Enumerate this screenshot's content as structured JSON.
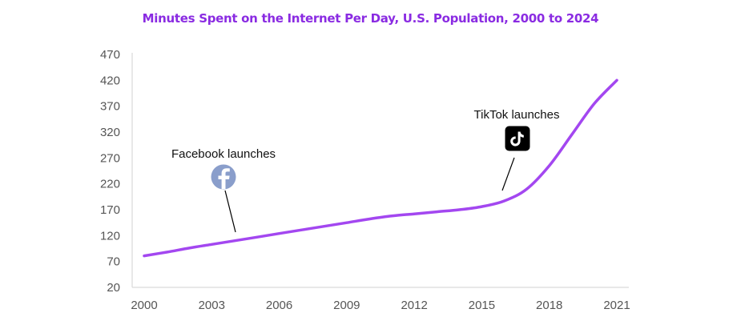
{
  "chart_data": {
    "type": "line",
    "title": "Minutes Spent on the Internet Per Day, U.S. Population, 2000 to 2024",
    "xlabel": "",
    "ylabel": "",
    "x_ticks": [
      "2000",
      "2003",
      "2006",
      "2009",
      "2012",
      "2015",
      "2018",
      "2021"
    ],
    "y_ticks": [
      470,
      420,
      370,
      320,
      270,
      220,
      170,
      120,
      70,
      20
    ],
    "xlim": [
      2000,
      2021
    ],
    "ylim": [
      20,
      470
    ],
    "grid": false,
    "line_color": "#a347f0",
    "series": [
      {
        "x": [
          2000,
          2001,
          2002,
          2003,
          2004,
          2005,
          2006,
          2007,
          2008,
          2009,
          2010,
          2011,
          2012,
          2013,
          2014,
          2015,
          2016,
          2017,
          2018,
          2019,
          2020,
          2021
        ],
        "values": [
          81,
          88,
          96,
          103,
          110,
          117,
          124,
          131,
          138,
          145,
          152,
          158,
          162,
          166,
          170,
          176,
          187,
          210,
          255,
          315,
          375,
          420
        ]
      }
    ],
    "annotations": [
      {
        "text": "Facebook launches",
        "icon": "facebook-icon",
        "x": 2004,
        "y": 110,
        "color": "#8a9ecb"
      },
      {
        "text": "TikTok launches",
        "icon": "tiktok-icon",
        "x": 2016,
        "y": 188,
        "color": "#000000"
      }
    ]
  }
}
